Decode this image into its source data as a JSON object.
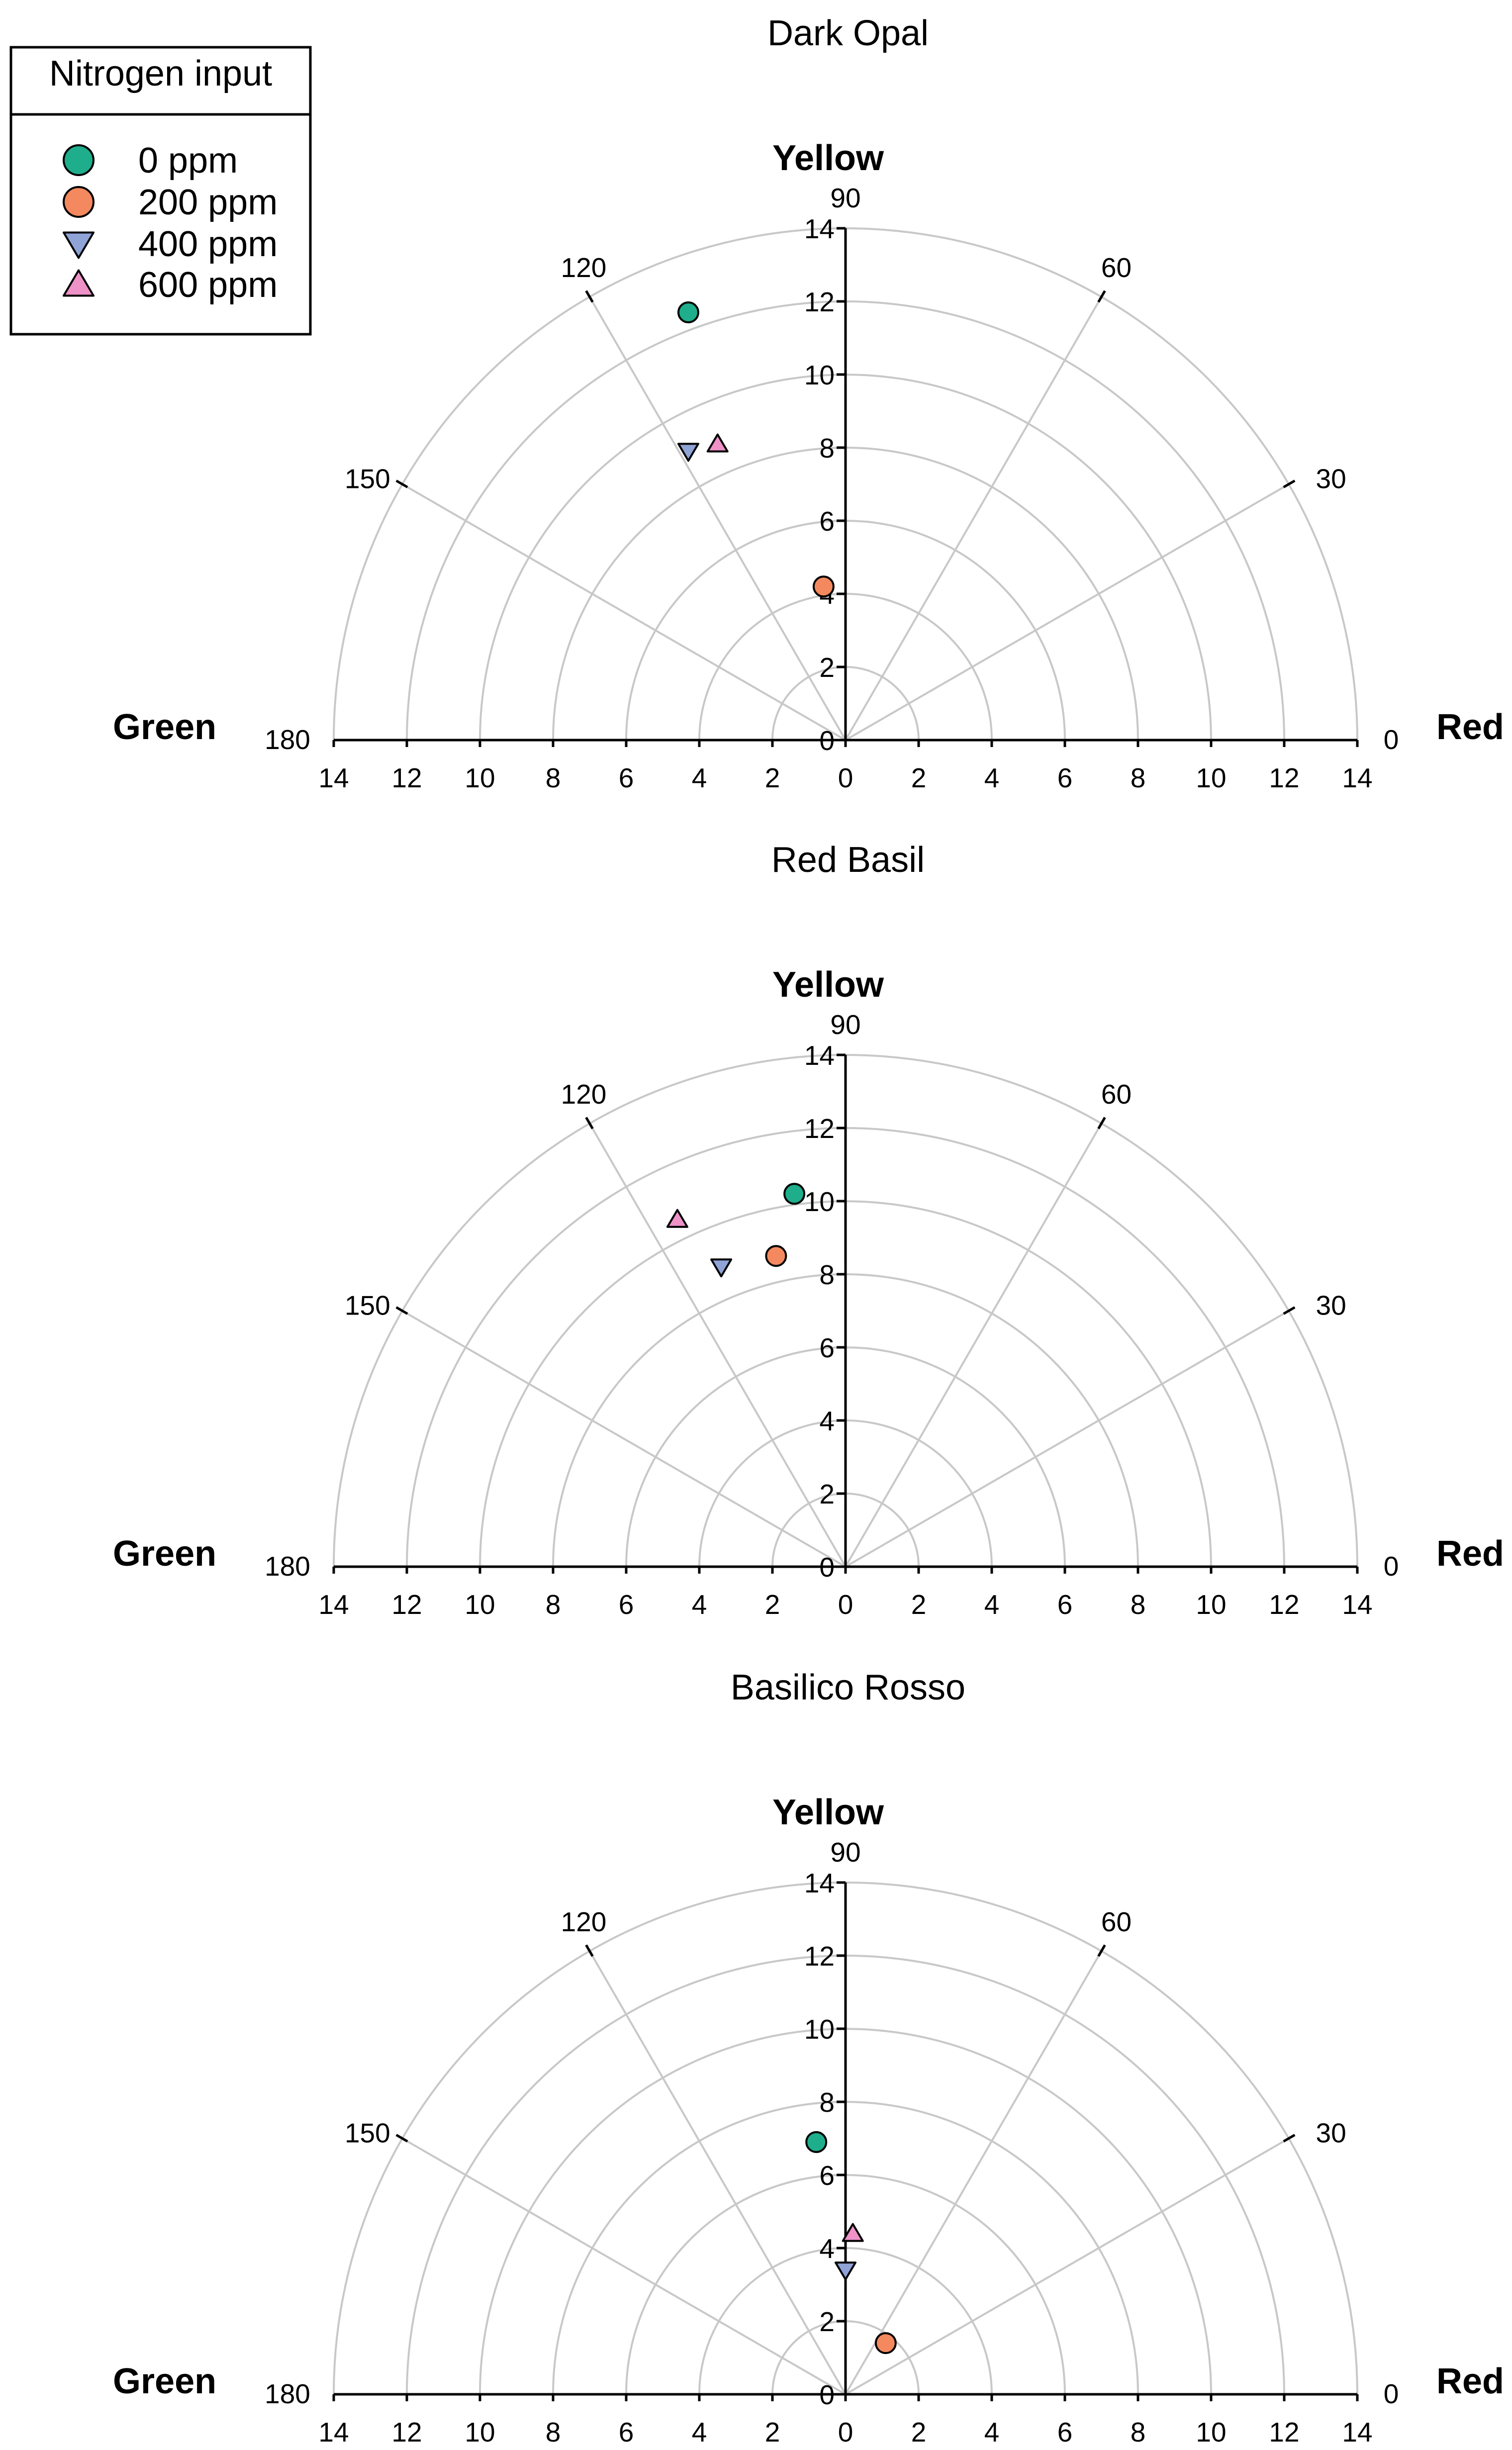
{
  "legend": {
    "title": "Nitrogen input",
    "entries": [
      {
        "label": "0 ppm",
        "marker": "circle",
        "color": "#1fae8c"
      },
      {
        "label": "200 ppm",
        "marker": "circle",
        "color": "#f4895f"
      },
      {
        "label": "400 ppm",
        "marker": "triangle-down",
        "color": "#8fa3d6"
      },
      {
        "label": "600 ppm",
        "marker": "triangle-up",
        "color": "#ee92c8"
      }
    ]
  },
  "axis_words": {
    "left": "Green",
    "right": "Red",
    "top": "Yellow"
  },
  "angle_ticks": [
    "0",
    "30",
    "60",
    "90",
    "120",
    "150",
    "180"
  ],
  "radial_ticks": [
    "0",
    "2",
    "4",
    "6",
    "8",
    "10",
    "12",
    "14"
  ],
  "bottom_ticks": [
    "14",
    "12",
    "10",
    "8",
    "6",
    "4",
    "2",
    "0",
    "2",
    "4",
    "6",
    "8",
    "10",
    "12",
    "14"
  ],
  "chart_data": [
    {
      "type": "scatter",
      "coordinates": "polar",
      "title": "Dark Opal",
      "rlim": [
        0,
        14
      ],
      "theta_range_deg": [
        0,
        180
      ],
      "x_unit": "polar x (red positive, green negative)",
      "y_unit": "polar y (yellow)",
      "series": [
        {
          "name": "0 ppm",
          "x": -4.3,
          "y": 11.7
        },
        {
          "name": "200 ppm",
          "x": -0.6,
          "y": 4.2
        },
        {
          "name": "400 ppm",
          "x": -4.3,
          "y": 7.9
        },
        {
          "name": "600 ppm",
          "x": -3.5,
          "y": 8.1
        }
      ]
    },
    {
      "type": "scatter",
      "coordinates": "polar",
      "title": "Red Basil",
      "rlim": [
        0,
        14
      ],
      "theta_range_deg": [
        0,
        180
      ],
      "series": [
        {
          "name": "0 ppm",
          "x": -1.4,
          "y": 10.2
        },
        {
          "name": "200 ppm",
          "x": -1.9,
          "y": 8.5
        },
        {
          "name": "400 ppm",
          "x": -3.4,
          "y": 8.2
        },
        {
          "name": "600 ppm",
          "x": -4.6,
          "y": 9.5
        }
      ]
    },
    {
      "type": "scatter",
      "coordinates": "polar",
      "title": "Basilico Rosso",
      "rlim": [
        0,
        14
      ],
      "theta_range_deg": [
        0,
        180
      ],
      "series": [
        {
          "name": "0 ppm",
          "x": -0.8,
          "y": 6.9
        },
        {
          "name": "200 ppm",
          "x": 1.1,
          "y": 1.4
        },
        {
          "name": "400 ppm",
          "x": 0.0,
          "y": 3.4
        },
        {
          "name": "600 ppm",
          "x": 0.2,
          "y": 4.4
        }
      ]
    }
  ]
}
